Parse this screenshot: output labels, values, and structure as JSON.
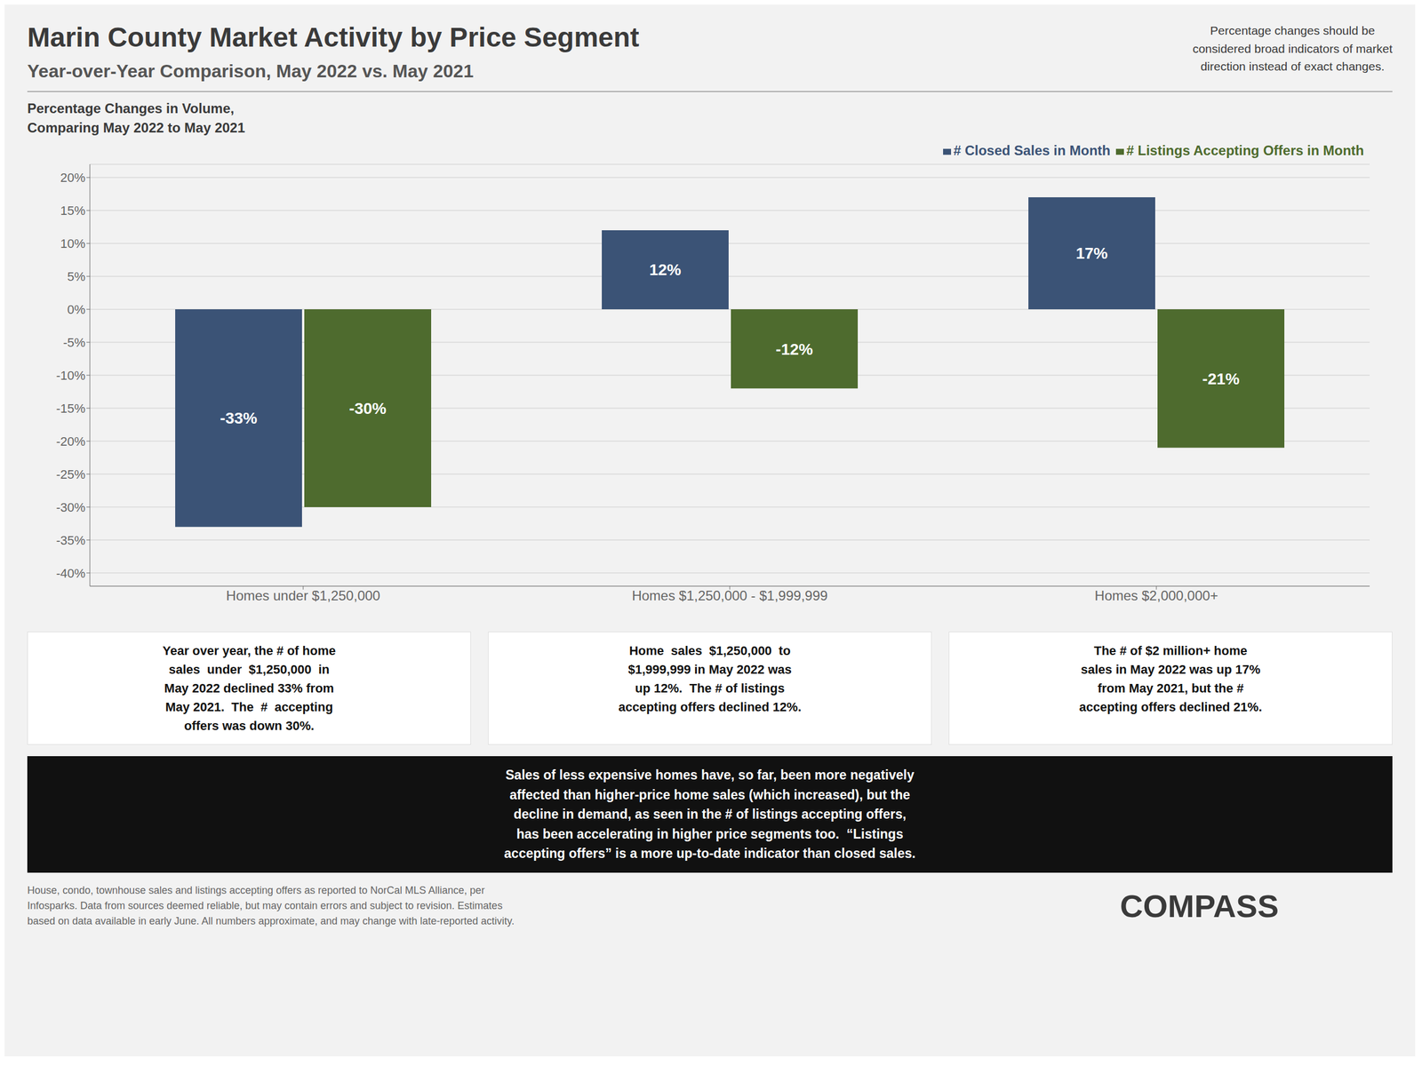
{
  "chart_data": {
    "type": "bar",
    "title": "Marin County Market Activity by Price Segment",
    "subtitle": "Year-over-Year Comparison, May 2022 vs. May 2021",
    "categories": [
      "Homes under $1,250,000",
      "Homes $1,250,000 - $1,999,999",
      "Homes $2,000,000+"
    ],
    "series": [
      {
        "name": "# Closed Sales in Month",
        "color": "#3b5376",
        "values": [
          -33,
          12,
          17
        ],
        "value_labels": [
          "-33%",
          "12%",
          "17%"
        ]
      },
      {
        "name": "# Listings Accepting Offers in Month",
        "color": "#4e6b2e",
        "values": [
          -30,
          -12,
          -21
        ],
        "value_labels": [
          "-30%",
          "-12%",
          "-21%"
        ]
      }
    ],
    "ylim": [
      -42,
      22
    ],
    "yticks": [
      {
        "value": -40,
        "label": "-40%"
      },
      {
        "value": -35,
        "label": "-35%"
      },
      {
        "value": -30,
        "label": "-30%"
      },
      {
        "value": -25,
        "label": "-25%"
      },
      {
        "value": -20,
        "label": "-20%"
      },
      {
        "value": -15,
        "label": "-15%"
      },
      {
        "value": -10,
        "label": "-10%"
      },
      {
        "value": -5,
        "label": "-5%"
      },
      {
        "value": 0,
        "label": "0%"
      },
      {
        "value": 5,
        "label": "5%"
      },
      {
        "value": 10,
        "label": "10%"
      },
      {
        "value": 15,
        "label": "15%"
      },
      {
        "value": 20,
        "label": "20%"
      }
    ],
    "grid": true,
    "legend": "upper right",
    "data_labels": true,
    "annotations": [
      "Percentage changes should be\nconsidered broad indicators of market\ndirection instead of exact changes.",
      "Percentage Changes in Volume,\nComparing May 2022 to May 2021",
      "Year over year, the # of home\nsales  under  $1,250,000  in\nMay 2022 declined 33% from\nMay 2021.  The  #  accepting\noffers was down 30%.",
      "Home  sales  $1,250,000  to\n$1,999,999 in May 2022 was\nup 12%.  The # of listings\naccepting offers declined 12%.",
      "The # of $2 million+ home\nsales in May 2022 was up 17%\nfrom May 2021, but the #\naccepting offers declined 21%.",
      "Sales of less expensive homes have, so far, been more negatively\naffected than higher-price home sales (which increased), but the\ndecline in demand, as seen in the # of listings accepting offers,\nhas been accelerating in higher price segments too.  “Listings\naccepting offers” is a more up-to-date indicator than closed sales.",
      "House, condo, townhouse sales and listings accepting offers as reported to NorCal MLS Alliance, per\nInfosparks. Data from sources deemed reliable, but may contain errors and subject to revision. Estimates\nbased on data available in early June. All numbers approximate, and may change with late-reported activity.",
      "COMPASS"
    ]
  }
}
